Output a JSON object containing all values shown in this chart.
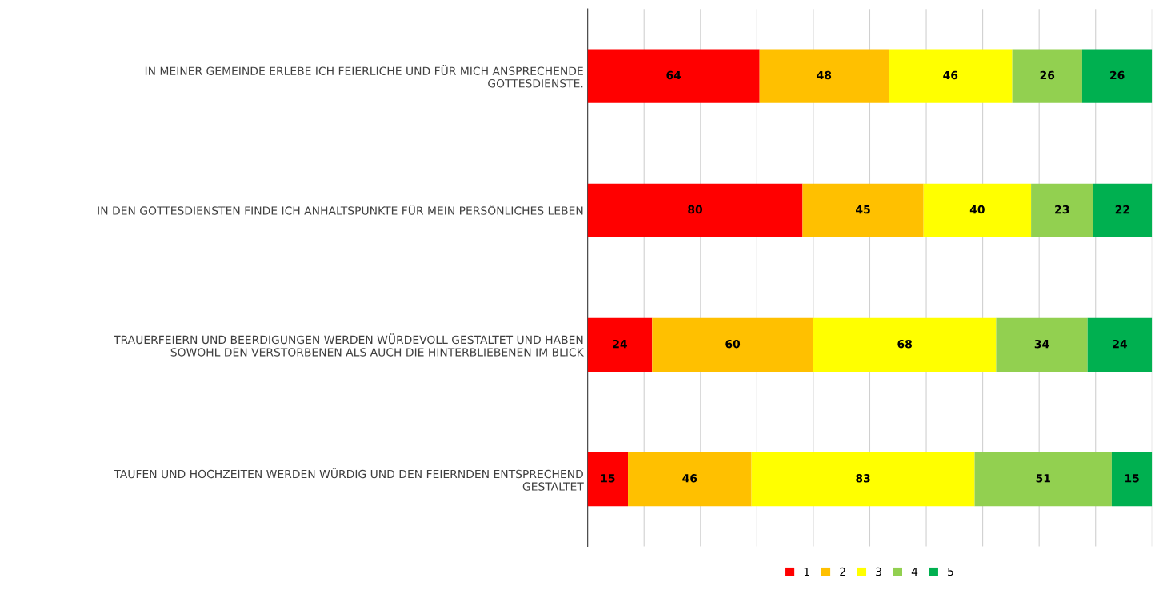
{
  "chart_data": {
    "type": "bar",
    "orientation": "horizontal",
    "stacked": true,
    "data_labels": true,
    "grid": "x",
    "legend": "bottom",
    "tick_labels": "y",
    "categories": [
      "IN MEINER GEMEINDE ERLEBE ICH FEIERLICHE UND FÜR MICH ANSPRECHENDE\nGOTTESDIENSTE.",
      "IN DEN GOTTESDIENSTEN FINDE ICH ANHALTSPUNKTE FÜR MEIN PERSÖNLICHES LEBEN",
      "TRAUERFEIERN UND BEERDIGUNGEN WERDEN WÜRDEVOLL GESTALTET UND HABEN\nSOWOHL DEN VERSTORBENEN ALS AUCH DIE HINTERBLIEBENEN IM BLICK",
      "TAUFEN UND HOCHZEITEN WERDEN WÜRDIG UND DEN FEIERNDEN ENTSPRECHEND\nGESTALTET"
    ],
    "series": [
      {
        "name": "1",
        "color": "#ff0000",
        "values": [
          64,
          80,
          24,
          15
        ]
      },
      {
        "name": "2",
        "color": "#ffc000",
        "values": [
          48,
          45,
          60,
          46
        ]
      },
      {
        "name": "3",
        "color": "#ffff00",
        "values": [
          46,
          40,
          68,
          83
        ]
      },
      {
        "name": "4",
        "color": "#92d050",
        "values": [
          26,
          23,
          34,
          51
        ]
      },
      {
        "name": "5",
        "color": "#00b050",
        "values": [
          26,
          22,
          24,
          15
        ]
      }
    ],
    "xlim": [
      0,
      210
    ],
    "xticks": [
      {
        "value": 0,
        "label": null
      },
      {
        "value": 21,
        "label": null
      },
      {
        "value": 42,
        "label": null
      },
      {
        "value": 63,
        "label": null
      },
      {
        "value": 84,
        "label": null
      },
      {
        "value": 105,
        "label": null
      },
      {
        "value": 126,
        "label": null
      },
      {
        "value": 147,
        "label": null
      },
      {
        "value": 168,
        "label": null
      },
      {
        "value": 189,
        "label": null
      },
      {
        "value": 210,
        "label": null
      }
    ]
  }
}
